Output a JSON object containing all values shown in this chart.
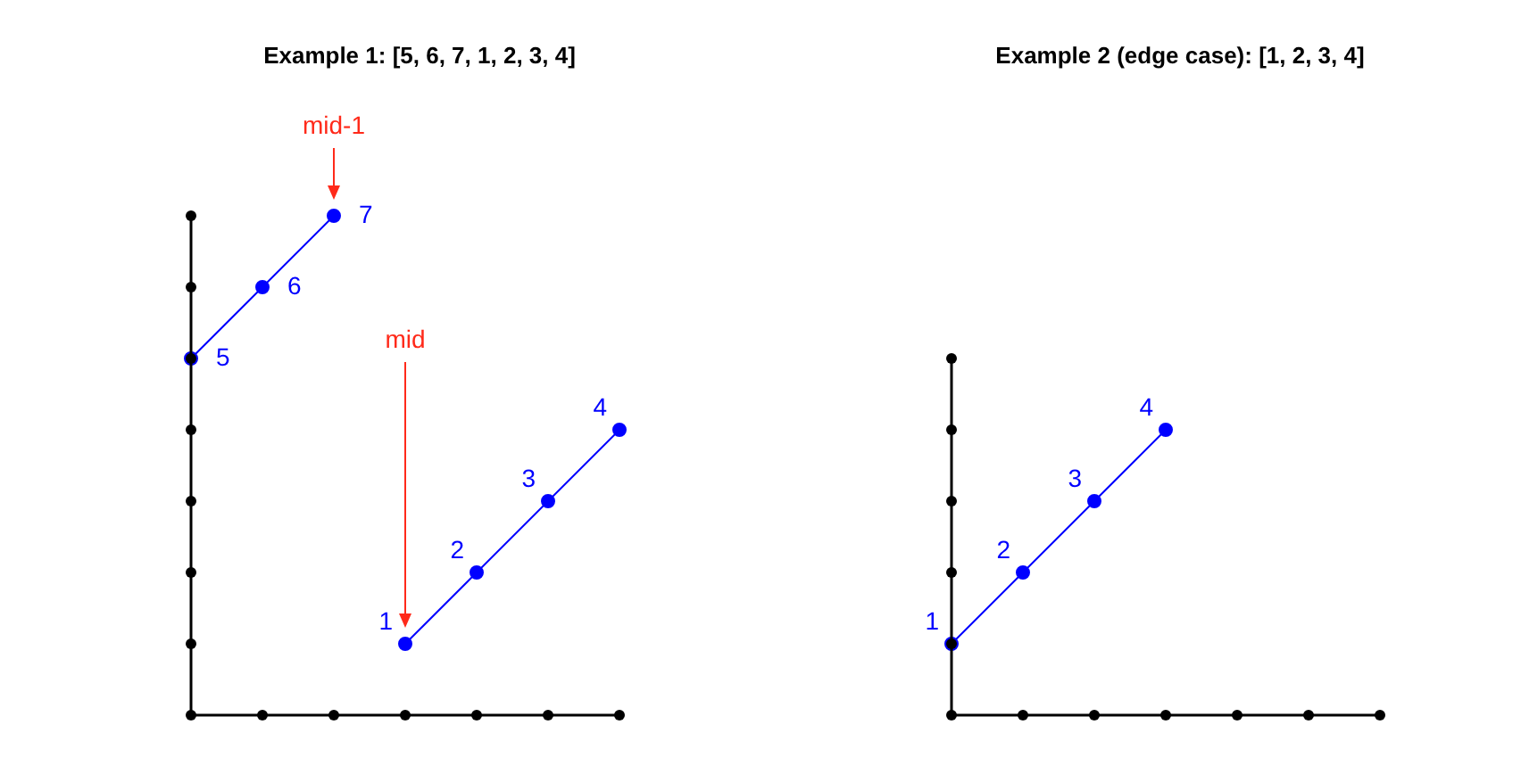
{
  "chart_data": [
    {
      "type": "line",
      "title": "Example 1: [5, 6, 7, 1, 2, 3, 4]",
      "categories": [
        null,
        null,
        null,
        null,
        null,
        null,
        null
      ],
      "ylim": [
        0,
        7
      ],
      "tick_labels": false,
      "grid": false,
      "legend": false,
      "marker": "circle",
      "data_labels": true,
      "series": [
        {
          "color": "#0000ff",
          "values": [
            5,
            6,
            7,
            null,
            null,
            null,
            null
          ]
        },
        {
          "color": "#0000ff",
          "values": [
            null,
            null,
            null,
            1,
            2,
            3,
            4
          ]
        }
      ],
      "annotations": [
        "mid-1",
        "mid"
      ]
    },
    {
      "type": "line",
      "title": "Example 2 (edge case): [1, 2, 3, 4]",
      "categories": [
        null,
        null,
        null,
        null,
        null,
        null,
        null
      ],
      "ylim": [
        0,
        5
      ],
      "tick_labels": false,
      "grid": false,
      "legend": false,
      "marker": "circle",
      "data_labels": true,
      "series": [
        {
          "color": "#0000ff",
          "values": [
            1,
            2,
            3,
            4,
            null,
            null,
            null
          ]
        }
      ]
    }
  ]
}
